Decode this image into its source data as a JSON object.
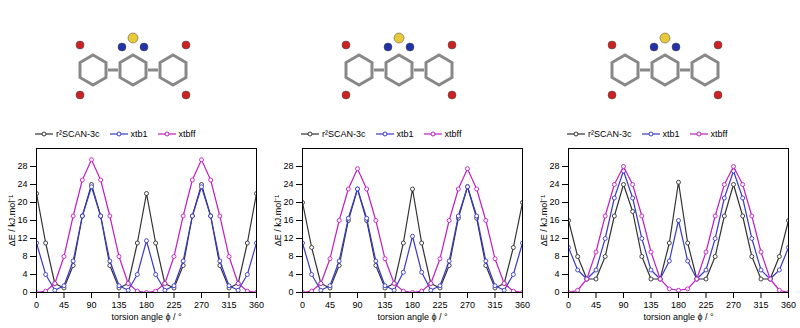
{
  "chart_data": [
    {
      "type": "line",
      "x_label": "torsion angle ϕ / °",
      "y_label": "ΔE / kJ.mol⁻¹",
      "xlim": [
        0,
        360
      ],
      "xticks": [
        0,
        45,
        90,
        135,
        180,
        225,
        270,
        315,
        360
      ],
      "ylim": [
        0,
        32
      ],
      "yticks": [
        0,
        4,
        8,
        12,
        16,
        20,
        24,
        28
      ],
      "grid": false,
      "legend": "top",
      "x": [
        0,
        15,
        30,
        45,
        60,
        75,
        90,
        105,
        120,
        135,
        150,
        165,
        180,
        195,
        210,
        225,
        240,
        255,
        270,
        285,
        300,
        315,
        330,
        345,
        360
      ],
      "series": [
        {
          "name": "r²SCAN-3c",
          "color": "#333333",
          "marker": "circle",
          "values": [
            22,
            11,
            2,
            1,
            6,
            17,
            24,
            17,
            6,
            1,
            2,
            11,
            22,
            11,
            2,
            1,
            6,
            17,
            24,
            17,
            6,
            1,
            2,
            11,
            22
          ]
        },
        {
          "name": "xtb1",
          "color": "#3a3acc",
          "marker": "circle",
          "values": [
            11,
            4,
            0.5,
            1.5,
            7,
            17,
            23.5,
            17,
            7,
            1.5,
            0.5,
            4,
            11.5,
            4,
            0.5,
            1.5,
            7,
            17,
            23.5,
            17,
            7,
            1.5,
            0.5,
            4,
            11
          ]
        },
        {
          "name": "xtbff",
          "color": "#c21fc2",
          "marker": "circle",
          "values": [
            0,
            0.3,
            2,
            8,
            17,
            25,
            29.5,
            25,
            17,
            8,
            2,
            0.3,
            0,
            0.3,
            2,
            8,
            17,
            25,
            29.5,
            25,
            17,
            8,
            2,
            0.3,
            0
          ]
        }
      ]
    },
    {
      "type": "line",
      "x_label": "torsion angle ϕ / °",
      "y_label": "ΔE / kJ.mol⁻¹",
      "xlim": [
        0,
        360
      ],
      "xticks": [
        0,
        45,
        90,
        135,
        180,
        225,
        270,
        315,
        360
      ],
      "ylim": [
        0,
        32
      ],
      "yticks": [
        0,
        4,
        8,
        12,
        16,
        20,
        24,
        28
      ],
      "grid": false,
      "legend": "top",
      "x": [
        0,
        15,
        30,
        45,
        60,
        75,
        90,
        105,
        120,
        135,
        150,
        165,
        180,
        195,
        210,
        225,
        240,
        255,
        270,
        285,
        300,
        315,
        330,
        345,
        360
      ],
      "series": [
        {
          "name": "r²SCAN-3c",
          "color": "#333333",
          "marker": "circle",
          "values": [
            20,
            10,
            2,
            1,
            6,
            16,
            23,
            16,
            6,
            1,
            2,
            11,
            23,
            11,
            2,
            1,
            6,
            16.5,
            23.5,
            16.5,
            6,
            1,
            2,
            10,
            20
          ]
        },
        {
          "name": "xtb1",
          "color": "#3a3acc",
          "marker": "circle",
          "values": [
            11,
            4,
            0.5,
            1.5,
            7,
            16.5,
            23,
            16.5,
            7,
            1.5,
            0.5,
            4.5,
            12.5,
            4.5,
            0.5,
            1.5,
            7,
            17,
            23.5,
            17,
            7,
            1.5,
            0.5,
            4,
            11
          ]
        },
        {
          "name": "xtbff",
          "color": "#c21fc2",
          "marker": "circle",
          "values": [
            0,
            0.3,
            2,
            7.5,
            16,
            23,
            27.5,
            23,
            16,
            7.5,
            2,
            0.3,
            0,
            0.3,
            2,
            7.5,
            16,
            23,
            27.5,
            23,
            16,
            7.5,
            2,
            0.3,
            0
          ]
        }
      ]
    },
    {
      "type": "line",
      "x_label": "torsion angle ϕ / °",
      "y_label": "ΔE / kJ.mol⁻¹",
      "xlim": [
        0,
        360
      ],
      "xticks": [
        0,
        45,
        90,
        135,
        180,
        225,
        270,
        315,
        360
      ],
      "ylim": [
        0,
        32
      ],
      "yticks": [
        0,
        4,
        8,
        12,
        16,
        20,
        24,
        28
      ],
      "grid": false,
      "legend": "top",
      "x": [
        0,
        15,
        30,
        45,
        60,
        75,
        90,
        105,
        120,
        135,
        150,
        165,
        180,
        195,
        210,
        225,
        240,
        255,
        270,
        285,
        300,
        315,
        330,
        345,
        360
      ],
      "series": [
        {
          "name": "r²SCAN-3c",
          "color": "#333333",
          "marker": "circle",
          "values": [
            16,
            8,
            3,
            3,
            8,
            17,
            24,
            18,
            8,
            3,
            3,
            11,
            24.5,
            11,
            3,
            3,
            8,
            17,
            24,
            17,
            8,
            3,
            3,
            8,
            16
          ]
        },
        {
          "name": "xtb1",
          "color": "#3a3acc",
          "marker": "circle",
          "values": [
            10,
            5,
            3,
            5,
            12,
            21,
            27,
            21,
            12,
            5,
            3,
            7,
            16,
            7,
            3,
            5,
            12,
            21,
            27,
            21,
            12,
            5,
            3,
            5,
            10
          ]
        },
        {
          "name": "xtbff",
          "color": "#c21fc2",
          "marker": "circle",
          "values": [
            0,
            0.5,
            3,
            9,
            17,
            24,
            28,
            24,
            17,
            9,
            3,
            0.8,
            0.5,
            0.8,
            3,
            9,
            17,
            24,
            28,
            24,
            17,
            9,
            3,
            0.5,
            0
          ]
        }
      ]
    }
  ]
}
